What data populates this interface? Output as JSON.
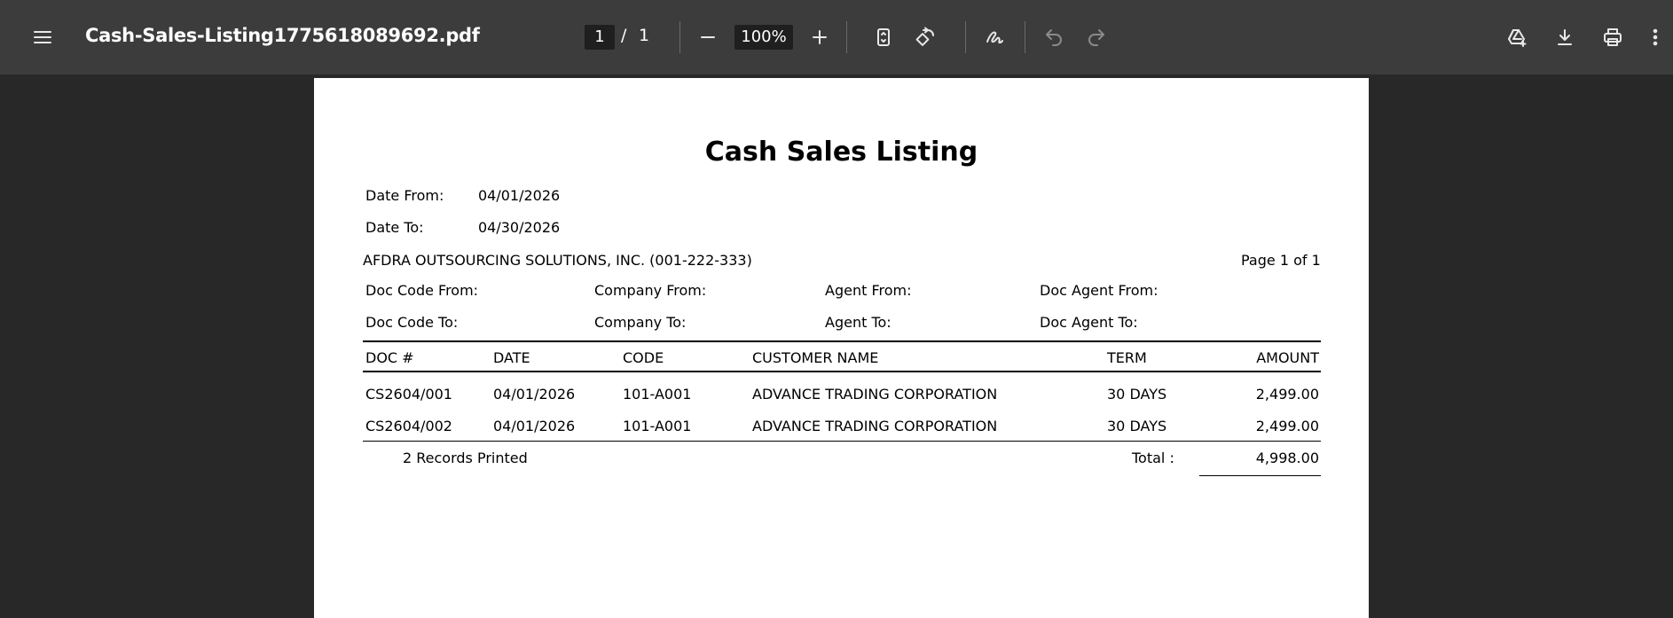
{
  "toolbar": {
    "file_name": "Cash-Sales-Listing1775618089692.pdf",
    "current_page": "1",
    "page_separator": "/",
    "total_pages": "1",
    "zoom": "100%"
  },
  "report": {
    "title": "Cash Sales Listing",
    "date_from_label": "Date From:",
    "date_from_value": "04/01/2026",
    "date_to_label": "Date To:",
    "date_to_value": "04/30/2026",
    "company": "AFDRA OUTSOURCING SOLUTIONS, INC. (001-222-333)",
    "page_info": "Page 1 of 1",
    "filters": {
      "doc_code_from": "Doc Code From:",
      "doc_code_to": "Doc Code To:",
      "company_from": "Company From:",
      "company_to": "Company To:",
      "agent_from": "Agent From:",
      "agent_to": "Agent To:",
      "doc_agent_from": "Doc Agent From:",
      "doc_agent_to": "Doc Agent To:"
    },
    "columns": {
      "doc": "DOC #",
      "date": "DATE",
      "code": "CODE",
      "customer": "CUSTOMER NAME",
      "term": "TERM",
      "amount": "AMOUNT"
    },
    "rows": [
      {
        "doc": "CS2604/001",
        "date": "04/01/2026",
        "code": "101-A001",
        "customer": "ADVANCE TRADING CORPORATION",
        "term": "30 DAYS",
        "amount": "2,499.00"
      },
      {
        "doc": "CS2604/002",
        "date": "04/01/2026",
        "code": "101-A001",
        "customer": "ADVANCE TRADING CORPORATION",
        "term": "30 DAYS",
        "amount": "2,499.00"
      }
    ],
    "records_printed": "2 Records Printed",
    "total_label": "Total :",
    "total_value": "4,998.00"
  },
  "icons": [
    "menu-icon",
    "zoom-out-icon",
    "zoom-in-icon",
    "fit-page-icon",
    "rotate-icon",
    "annotate-icon",
    "undo-icon",
    "redo-icon",
    "drive-icon",
    "download-icon",
    "print-icon",
    "more-icon"
  ]
}
